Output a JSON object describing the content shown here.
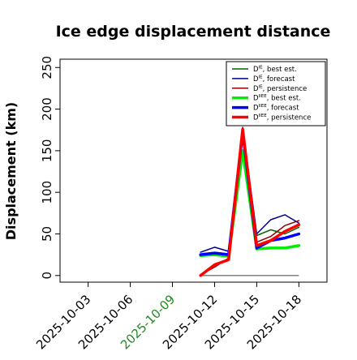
{
  "chart_data": {
    "type": "line",
    "title": "Ice edge displacement distance",
    "xlabel": "",
    "ylabel": "Displacement (km)",
    "x": [
      "2025-10-11",
      "2025-10-12",
      "2025-10-13",
      "2025-10-14",
      "2025-10-15",
      "2025-10-16",
      "2025-10-17",
      "2025-10-18"
    ],
    "xticks": [
      "2025-10-03",
      "2025-10-06",
      "2025-10-09",
      "2025-10-12",
      "2025-10-15",
      "2025-10-18"
    ],
    "xtick_highlight": "2025-10-09",
    "xtick_highlight_color": "#228b22",
    "xlim": [
      "2025-10-01",
      "2025-10-20"
    ],
    "yticks": [
      0,
      50,
      100,
      150,
      200,
      250
    ],
    "ylim": [
      -8,
      260
    ],
    "grid": false,
    "legend_position": "top-right",
    "zero_line_color": "#808080",
    "series": [
      {
        "name": "D^IE, best est.",
        "label_base": "D",
        "label_sup": "IE",
        "label_rest": ", best est.",
        "color": "#006400",
        "lw": 1.5,
        "values": [
          25,
          28,
          26,
          175,
          48,
          55,
          50,
          58
        ]
      },
      {
        "name": "D^IE, forecast",
        "label_base": "D",
        "label_sup": "IE",
        "label_rest": ", forecast",
        "color": "#00008b",
        "lw": 1.5,
        "values": [
          28,
          34,
          29,
          178,
          50,
          67,
          73,
          63
        ]
      },
      {
        "name": "D^IE, persistence",
        "label_base": "D",
        "label_sup": "IE",
        "label_rest": ", persistence",
        "color": "#8b0000",
        "lw": 1.5,
        "values": [
          1,
          10,
          21,
          176,
          40,
          47,
          60,
          66
        ]
      },
      {
        "name": "D^IIEE, best est.",
        "label_base": "D",
        "label_sup": "IIEE",
        "label_rest": ", best est.",
        "color": "#00ee00",
        "lw": 3.5,
        "values": [
          24,
          25,
          23,
          150,
          32,
          33,
          33,
          36
        ]
      },
      {
        "name": "D^IIEE, forecast",
        "label_base": "D",
        "label_sup": "IIEE",
        "label_rest": ", forecast",
        "color": "#0000ff",
        "lw": 3.5,
        "values": [
          25,
          27,
          25,
          172,
          33,
          42,
          45,
          50
        ]
      },
      {
        "name": "D^IIEE, persistence",
        "label_base": "D",
        "label_sup": "IIEE",
        "label_rest": ", persistence",
        "color": "#ff0000",
        "lw": 3.5,
        "values": [
          0,
          13,
          19,
          176,
          36,
          42,
          53,
          61
        ]
      }
    ],
    "zero_line": {
      "from": "2025-10-11",
      "to": "2025-10-18",
      "value": 0
    }
  }
}
